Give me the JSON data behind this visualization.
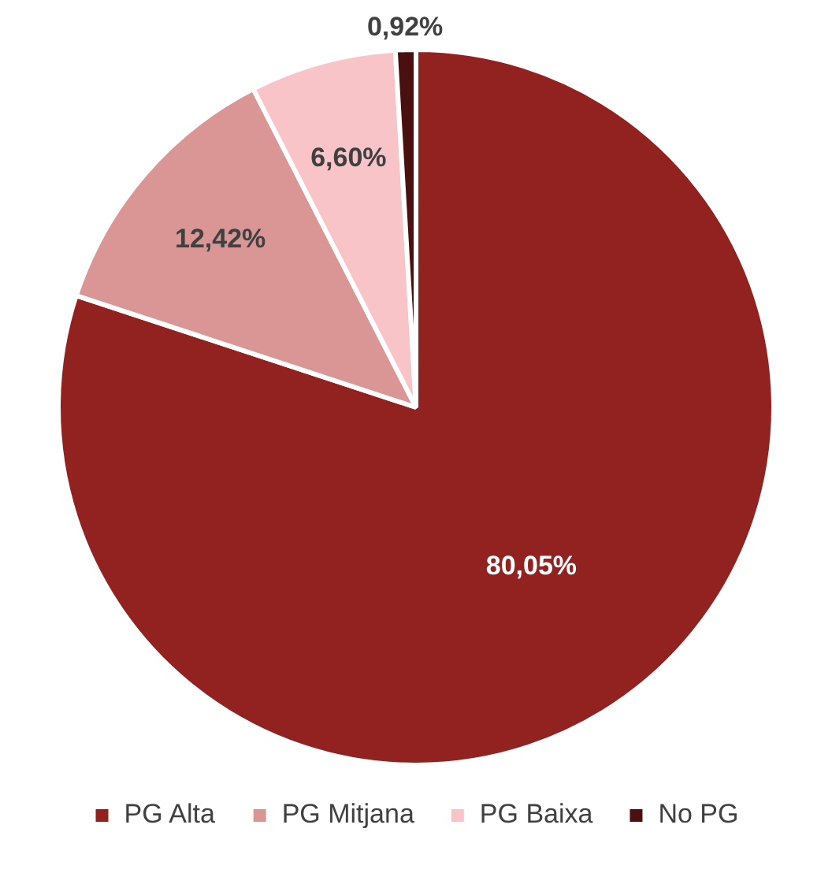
{
  "chart_data": {
    "type": "pie",
    "categories": [
      "PG Alta",
      "PG Mitjana",
      "PG Baixa",
      "No PG"
    ],
    "values": [
      80.05,
      12.42,
      6.6,
      0.92
    ],
    "colors": [
      "#922220",
      "#d99694",
      "#f8c4c8",
      "#4a1010"
    ],
    "value_labels": [
      "80,05%",
      "12,42%",
      "6,60%",
      "0,92%"
    ],
    "legend": "bottom"
  }
}
